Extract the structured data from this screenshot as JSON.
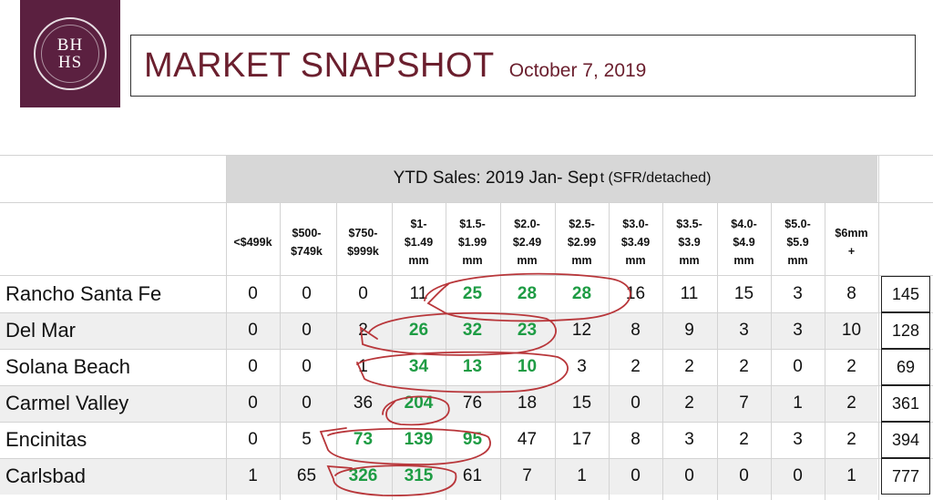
{
  "logo": {
    "line1": "BH",
    "line2": "HS"
  },
  "header": {
    "title": "MARKET SNAPSHOT",
    "date": "October 7, 2019"
  },
  "table": {
    "group_title": "YTD Sales: 2019 Jan- Sep",
    "group_title_suffix": "t (SFR/detached)",
    "columns": [
      "<$499k",
      "$500-\n$749k",
      "$750-\n$999k",
      "$1-\n$1.49\nmm",
      "$1.5-\n$1.99\nmm",
      "$2.0-\n$2.49\nmm",
      "$2.5-\n$2.99\nmm",
      "$3.0-\n$3.49\nmm",
      "$3.5-\n$3.9\nmm",
      "$4.0-\n$4.9\nmm",
      "$5.0-\n$5.9\nmm",
      "$6mm\n+"
    ],
    "rows": [
      {
        "name": "Rancho Santa Fe",
        "values": [
          "0",
          "0",
          "0",
          "11",
          "25",
          "28",
          "28",
          "16",
          "11",
          "15",
          "3",
          "8"
        ],
        "total": "145",
        "highlight": [
          4,
          5,
          6
        ]
      },
      {
        "name": "Del Mar",
        "values": [
          "0",
          "0",
          "2",
          "26",
          "32",
          "23",
          "12",
          "8",
          "9",
          "3",
          "3",
          "10"
        ],
        "total": "128",
        "highlight": [
          3,
          4,
          5
        ]
      },
      {
        "name": "Solana Beach",
        "values": [
          "0",
          "0",
          "1",
          "34",
          "13",
          "10",
          "3",
          "2",
          "2",
          "2",
          "0",
          "2"
        ],
        "total": "69",
        "highlight": [
          3,
          4,
          5
        ]
      },
      {
        "name": "Carmel Valley",
        "values": [
          "0",
          "0",
          "36",
          "204",
          "76",
          "18",
          "15",
          "0",
          "2",
          "7",
          "1",
          "2"
        ],
        "total": "361",
        "highlight": [
          3
        ]
      },
      {
        "name": "Encinitas",
        "values": [
          "0",
          "5",
          "73",
          "139",
          "95",
          "47",
          "17",
          "8",
          "3",
          "2",
          "3",
          "2"
        ],
        "total": "394",
        "highlight": [
          2,
          3,
          4
        ]
      },
      {
        "name": "Carlsbad",
        "values": [
          "1",
          "65",
          "326",
          "315",
          "61",
          "7",
          "1",
          "0",
          "0",
          "0",
          "0",
          "1"
        ],
        "total": "777",
        "highlight": [
          2,
          3
        ]
      }
    ]
  }
}
